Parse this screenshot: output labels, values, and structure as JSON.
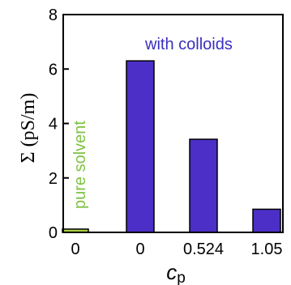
{
  "chart_data": {
    "type": "bar",
    "title": "",
    "ylabel": "Σ (pS/m)",
    "xlabel_main": "c",
    "xlabel_sub": "p",
    "ylim": [
      0,
      8
    ],
    "yticks": [
      0,
      2,
      4,
      6,
      8
    ],
    "categories": [
      "0",
      "0",
      "0.524",
      "1.05"
    ],
    "values": [
      0.12,
      6.3,
      3.42,
      0.85
    ],
    "bar_colors": [
      "#a8d040",
      "#4b2fc6",
      "#4b2fc6",
      "#4b2fc6"
    ],
    "annotations": [
      {
        "text": "with colloids",
        "color": "#3a2fc0"
      },
      {
        "text": "pure solvent",
        "color": "#7ec242"
      }
    ],
    "grid": false,
    "legend": "none"
  }
}
